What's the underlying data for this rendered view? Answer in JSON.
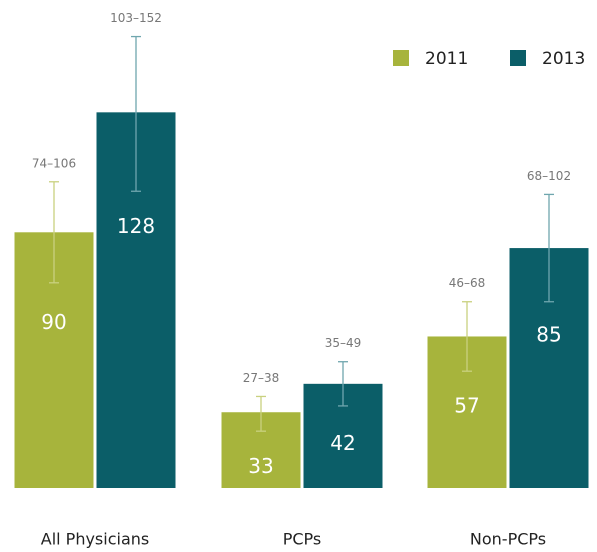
{
  "chart_data": {
    "type": "bar",
    "categories": [
      "All Physicians",
      "PCPs",
      "Non-PCPs"
    ],
    "series": [
      {
        "name": "2011",
        "color": "#a7b43c",
        "error_color": "#c9d17f",
        "values": [
          90,
          33,
          57
        ],
        "error_low": [
          74,
          27,
          46
        ],
        "error_high": [
          106,
          38,
          68
        ],
        "error_labels": [
          "74–106",
          "27–38",
          "46–68"
        ]
      },
      {
        "name": "2013",
        "color": "#0b5e68",
        "error_color": "#6fa6ae",
        "values": [
          128,
          42,
          85
        ],
        "error_low": [
          103,
          35,
          68
        ],
        "error_high": [
          152,
          49,
          102
        ],
        "error_labels": [
          "103–152",
          "35–49",
          "68–102"
        ]
      }
    ],
    "ylim": [
      9,
      162
    ],
    "legend": "upper right",
    "grid": false
  }
}
